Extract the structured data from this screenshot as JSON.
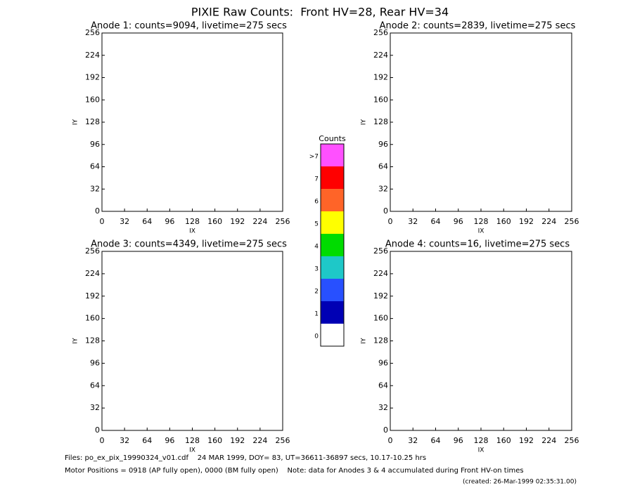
{
  "title": "PIXIE Raw Counts:  Front HV=28, Rear HV=34",
  "footer": [
    "Files: po_ex_pix_19990324_v01.cdf    24 MAR 1999, DOY= 83, UT=36611-36897 secs, 10.17-10.25 hrs",
    "Motor Positions = 0918 (AP fully open), 0000 (BM fully open)    Note: data for Anodes 3 & 4 accumulated during Front HV-on times",
    "(created: 26-Mar-1999 02:35:31.00)"
  ],
  "chart_data": [
    {
      "type": "heatmap",
      "title": "Anode 1: counts=9094, livetime=275 secs",
      "xlabel": "IX",
      "ylabel": "IY",
      "xlim": [
        0,
        256
      ],
      "ylim": [
        0,
        256
      ],
      "xticks": [
        0,
        32,
        64,
        96,
        128,
        160,
        192,
        224,
        256
      ],
      "yticks": [
        0,
        32,
        64,
        96,
        128,
        160,
        192,
        224,
        256
      ]
    },
    {
      "type": "heatmap",
      "title": "Anode 2: counts=2839, livetime=275 secs",
      "xlabel": "IX",
      "ylabel": "IY",
      "xlim": [
        0,
        256
      ],
      "ylim": [
        0,
        256
      ],
      "xticks": [
        0,
        32,
        64,
        96,
        128,
        160,
        192,
        224,
        256
      ],
      "yticks": [
        0,
        32,
        64,
        96,
        128,
        160,
        192,
        224,
        256
      ]
    },
    {
      "type": "heatmap",
      "title": "Anode 3: counts=4349, livetime=275 secs",
      "xlabel": "IX",
      "ylabel": "IY",
      "xlim": [
        0,
        256
      ],
      "ylim": [
        0,
        256
      ],
      "xticks": [
        0,
        32,
        64,
        96,
        128,
        160,
        192,
        224,
        256
      ],
      "yticks": [
        0,
        32,
        64,
        96,
        128,
        160,
        192,
        224,
        256
      ]
    },
    {
      "type": "heatmap",
      "title": "Anode 4: counts=16, livetime=275 secs",
      "xlabel": "IX",
      "ylabel": "IY",
      "xlim": [
        0,
        256
      ],
      "ylim": [
        0,
        256
      ],
      "xticks": [
        0,
        32,
        64,
        96,
        128,
        160,
        192,
        224,
        256
      ],
      "yticks": [
        0,
        32,
        64,
        96,
        128,
        160,
        192,
        224,
        256
      ]
    },
    {
      "type": "colorbar",
      "title": "Counts",
      "categories": [
        "0",
        "1",
        "2",
        "3",
        "4",
        "5",
        "6",
        "7",
        ">7"
      ],
      "colors": [
        "#ffffff",
        "#0000b4",
        "#2850ff",
        "#1ec8c8",
        "#00dc00",
        "#ffff00",
        "#ff6428",
        "#ff0000",
        "#ff50ff"
      ]
    }
  ]
}
